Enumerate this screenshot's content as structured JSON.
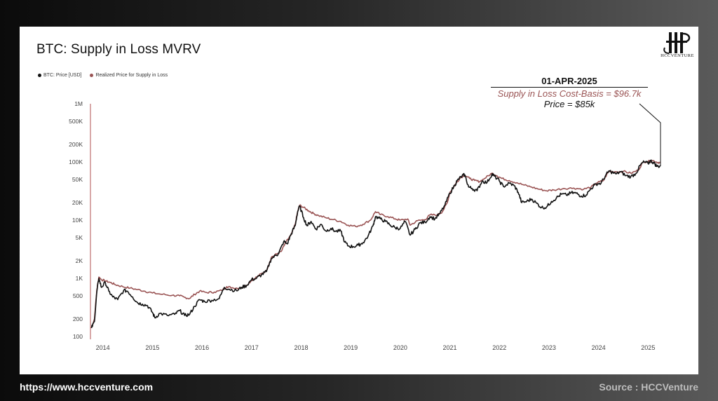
{
  "title": "BTC: Supply in Loss MVRV",
  "logo_text": "HCCVENTURE",
  "annotation": {
    "date": "01-APR-2025",
    "supply": "Supply in Loss Cost-Basis = $96.7k",
    "price": "Price = $85k"
  },
  "footer": {
    "url": "https://www.hccventure.com",
    "source": "Source : HCCVenture"
  },
  "colors": {
    "price": "#111111",
    "realized": "#9a5454"
  },
  "chart_data": {
    "type": "line",
    "ylog": true,
    "ylim": [
      100,
      1000000
    ],
    "xlim": [
      2013.75,
      2025.25
    ],
    "yticks": [
      {
        "v": 1000000,
        "label": "1M"
      },
      {
        "v": 500000,
        "label": "500K"
      },
      {
        "v": 200000,
        "label": "200K"
      },
      {
        "v": 100000,
        "label": "100K"
      },
      {
        "v": 50000,
        "label": "50K"
      },
      {
        "v": 20000,
        "label": "20K"
      },
      {
        "v": 10000,
        "label": "10K"
      },
      {
        "v": 5000,
        "label": "5K"
      },
      {
        "v": 2000,
        "label": "2K"
      },
      {
        "v": 1000,
        "label": "1K"
      },
      {
        "v": 500,
        "label": "500"
      },
      {
        "v": 200,
        "label": "200"
      },
      {
        "v": 100,
        "label": "100"
      }
    ],
    "xticks": [
      {
        "v": 2014,
        "label": "2014"
      },
      {
        "v": 2015,
        "label": "2015"
      },
      {
        "v": 2016,
        "label": "2016"
      },
      {
        "v": 2017,
        "label": "2017"
      },
      {
        "v": 2018,
        "label": "2018"
      },
      {
        "v": 2019,
        "label": "2019"
      },
      {
        "v": 2020,
        "label": "2020"
      },
      {
        "v": 2021,
        "label": "2021"
      },
      {
        "v": 2022,
        "label": "2022"
      },
      {
        "v": 2023,
        "label": "2023"
      },
      {
        "v": 2024,
        "label": "2024"
      },
      {
        "v": 2025,
        "label": "2025"
      }
    ],
    "series": [
      {
        "name": "BTC: Price [USD]",
        "color": "#111111",
        "points": [
          [
            2013.77,
            140
          ],
          [
            2013.83,
            180
          ],
          [
            2013.88,
            600
          ],
          [
            2013.92,
            1000
          ],
          [
            2013.97,
            700
          ],
          [
            2014.05,
            850
          ],
          [
            2014.12,
            600
          ],
          [
            2014.2,
            480
          ],
          [
            2014.3,
            430
          ],
          [
            2014.42,
            620
          ],
          [
            2014.5,
            600
          ],
          [
            2014.6,
            480
          ],
          [
            2014.7,
            380
          ],
          [
            2014.8,
            360
          ],
          [
            2014.9,
            340
          ],
          [
            2015.0,
            260
          ],
          [
            2015.05,
            210
          ],
          [
            2015.15,
            250
          ],
          [
            2015.3,
            230
          ],
          [
            2015.45,
            240
          ],
          [
            2015.55,
            280
          ],
          [
            2015.65,
            230
          ],
          [
            2015.75,
            240
          ],
          [
            2015.85,
            330
          ],
          [
            2015.95,
            430
          ],
          [
            2016.05,
            400
          ],
          [
            2016.2,
            420
          ],
          [
            2016.35,
            450
          ],
          [
            2016.45,
            700
          ],
          [
            2016.55,
            650
          ],
          [
            2016.7,
            610
          ],
          [
            2016.8,
            700
          ],
          [
            2016.9,
            750
          ],
          [
            2017.0,
            950
          ],
          [
            2017.1,
            1000
          ],
          [
            2017.2,
            1150
          ],
          [
            2017.3,
            1300
          ],
          [
            2017.4,
            2200
          ],
          [
            2017.5,
            2500
          ],
          [
            2017.55,
            2700
          ],
          [
            2017.65,
            4300
          ],
          [
            2017.72,
            3900
          ],
          [
            2017.8,
            5800
          ],
          [
            2017.88,
            8000
          ],
          [
            2017.93,
            14000
          ],
          [
            2017.97,
            17500
          ],
          [
            2018.05,
            11000
          ],
          [
            2018.12,
            8000
          ],
          [
            2018.2,
            9500
          ],
          [
            2018.3,
            7000
          ],
          [
            2018.4,
            8500
          ],
          [
            2018.5,
            6500
          ],
          [
            2018.6,
            7200
          ],
          [
            2018.7,
            6400
          ],
          [
            2018.8,
            6500
          ],
          [
            2018.88,
            4200
          ],
          [
            2018.95,
            3600
          ],
          [
            2019.05,
            3500
          ],
          [
            2019.15,
            3700
          ],
          [
            2019.25,
            4100
          ],
          [
            2019.35,
            5300
          ],
          [
            2019.45,
            8000
          ],
          [
            2019.5,
            11500
          ],
          [
            2019.6,
            10500
          ],
          [
            2019.7,
            9500
          ],
          [
            2019.8,
            8200
          ],
          [
            2019.9,
            7400
          ],
          [
            2020.0,
            7200
          ],
          [
            2020.1,
            9500
          ],
          [
            2020.2,
            5500
          ],
          [
            2020.3,
            7000
          ],
          [
            2020.4,
            9000
          ],
          [
            2020.5,
            9200
          ],
          [
            2020.6,
            11500
          ],
          [
            2020.7,
            10500
          ],
          [
            2020.8,
            13000
          ],
          [
            2020.9,
            18000
          ],
          [
            2021.0,
            29000
          ],
          [
            2021.1,
            40000
          ],
          [
            2021.15,
            48000
          ],
          [
            2021.25,
            58000
          ],
          [
            2021.3,
            60000
          ],
          [
            2021.38,
            37000
          ],
          [
            2021.45,
            35000
          ],
          [
            2021.55,
            32000
          ],
          [
            2021.65,
            47000
          ],
          [
            2021.75,
            44000
          ],
          [
            2021.85,
            62000
          ],
          [
            2021.9,
            57000
          ],
          [
            2022.0,
            47000
          ],
          [
            2022.08,
            38000
          ],
          [
            2022.2,
            43000
          ],
          [
            2022.3,
            39000
          ],
          [
            2022.38,
            30000
          ],
          [
            2022.45,
            20000
          ],
          [
            2022.55,
            21000
          ],
          [
            2022.65,
            23000
          ],
          [
            2022.75,
            19500
          ],
          [
            2022.85,
            16500
          ],
          [
            2022.95,
            16700
          ],
          [
            2023.05,
            21000
          ],
          [
            2023.15,
            24000
          ],
          [
            2023.25,
            28000
          ],
          [
            2023.35,
            27000
          ],
          [
            2023.45,
            29500
          ],
          [
            2023.55,
            29000
          ],
          [
            2023.65,
            26000
          ],
          [
            2023.75,
            27000
          ],
          [
            2023.85,
            35000
          ],
          [
            2023.95,
            42000
          ],
          [
            2024.05,
            43000
          ],
          [
            2024.15,
            60000
          ],
          [
            2024.22,
            70000
          ],
          [
            2024.35,
            62000
          ],
          [
            2024.45,
            68000
          ],
          [
            2024.55,
            58000
          ],
          [
            2024.65,
            56000
          ],
          [
            2024.75,
            63000
          ],
          [
            2024.85,
            90000
          ],
          [
            2024.92,
            100000
          ],
          [
            2025.0,
            94000
          ],
          [
            2025.05,
            105000
          ],
          [
            2025.12,
            96000
          ],
          [
            2025.18,
            84000
          ],
          [
            2025.25,
            85000
          ]
        ]
      },
      {
        "name": "Realized Price for Supply in Loss",
        "color": "#9a5454",
        "points": [
          [
            2013.77,
            140
          ],
          [
            2013.83,
            200
          ],
          [
            2013.88,
            650
          ],
          [
            2013.92,
            1050
          ],
          [
            2013.97,
            950
          ],
          [
            2014.05,
            900
          ],
          [
            2014.15,
            850
          ],
          [
            2014.25,
            780
          ],
          [
            2014.4,
            720
          ],
          [
            2014.55,
            680
          ],
          [
            2014.7,
            640
          ],
          [
            2014.85,
            600
          ],
          [
            2015.0,
            560
          ],
          [
            2015.2,
            530
          ],
          [
            2015.4,
            510
          ],
          [
            2015.55,
            500
          ],
          [
            2015.65,
            470
          ],
          [
            2015.75,
            450
          ],
          [
            2015.85,
            530
          ],
          [
            2015.95,
            600
          ],
          [
            2016.1,
            570
          ],
          [
            2016.25,
            580
          ],
          [
            2016.4,
            620
          ],
          [
            2016.5,
            720
          ],
          [
            2016.6,
            690
          ],
          [
            2016.75,
            680
          ],
          [
            2016.9,
            760
          ],
          [
            2017.0,
            920
          ],
          [
            2017.1,
            1050
          ],
          [
            2017.2,
            1200
          ],
          [
            2017.3,
            1350
          ],
          [
            2017.4,
            2300
          ],
          [
            2017.5,
            2600
          ],
          [
            2017.6,
            2900
          ],
          [
            2017.7,
            4300
          ],
          [
            2017.8,
            5600
          ],
          [
            2017.88,
            8500
          ],
          [
            2017.93,
            14000
          ],
          [
            2017.97,
            18000
          ],
          [
            2018.05,
            16500
          ],
          [
            2018.15,
            14500
          ],
          [
            2018.25,
            13000
          ],
          [
            2018.35,
            12000
          ],
          [
            2018.5,
            11000
          ],
          [
            2018.65,
            10200
          ],
          [
            2018.8,
            9500
          ],
          [
            2018.95,
            8200
          ],
          [
            2019.1,
            7800
          ],
          [
            2019.25,
            8500
          ],
          [
            2019.4,
            10000
          ],
          [
            2019.5,
            14000
          ],
          [
            2019.6,
            12500
          ],
          [
            2019.75,
            11500
          ],
          [
            2019.9,
            10500
          ],
          [
            2020.0,
            10000
          ],
          [
            2020.15,
            10500
          ],
          [
            2020.2,
            8200
          ],
          [
            2020.35,
            9800
          ],
          [
            2020.5,
            10200
          ],
          [
            2020.6,
            12300
          ],
          [
            2020.75,
            12300
          ],
          [
            2020.85,
            14000
          ],
          [
            2020.95,
            20000
          ],
          [
            2021.0,
            30000
          ],
          [
            2021.1,
            40000
          ],
          [
            2021.2,
            52000
          ],
          [
            2021.3,
            60000
          ],
          [
            2021.4,
            52000
          ],
          [
            2021.5,
            48000
          ],
          [
            2021.6,
            46000
          ],
          [
            2021.7,
            52000
          ],
          [
            2021.85,
            64000
          ],
          [
            2021.95,
            58000
          ],
          [
            2022.05,
            52000
          ],
          [
            2022.2,
            48000
          ],
          [
            2022.35,
            44000
          ],
          [
            2022.5,
            40000
          ],
          [
            2022.65,
            37000
          ],
          [
            2022.8,
            34000
          ],
          [
            2022.95,
            32000
          ],
          [
            2023.1,
            33000
          ],
          [
            2023.3,
            35000
          ],
          [
            2023.5,
            35500
          ],
          [
            2023.7,
            34000
          ],
          [
            2023.85,
            37000
          ],
          [
            2023.95,
            43000
          ],
          [
            2024.1,
            48000
          ],
          [
            2024.2,
            68000
          ],
          [
            2024.35,
            68000
          ],
          [
            2024.5,
            69000
          ],
          [
            2024.65,
            64000
          ],
          [
            2024.8,
            72000
          ],
          [
            2024.9,
            100000
          ],
          [
            2025.0,
            102000
          ],
          [
            2025.1,
            105000
          ],
          [
            2025.2,
            98000
          ],
          [
            2025.25,
            96700
          ]
        ]
      }
    ]
  }
}
